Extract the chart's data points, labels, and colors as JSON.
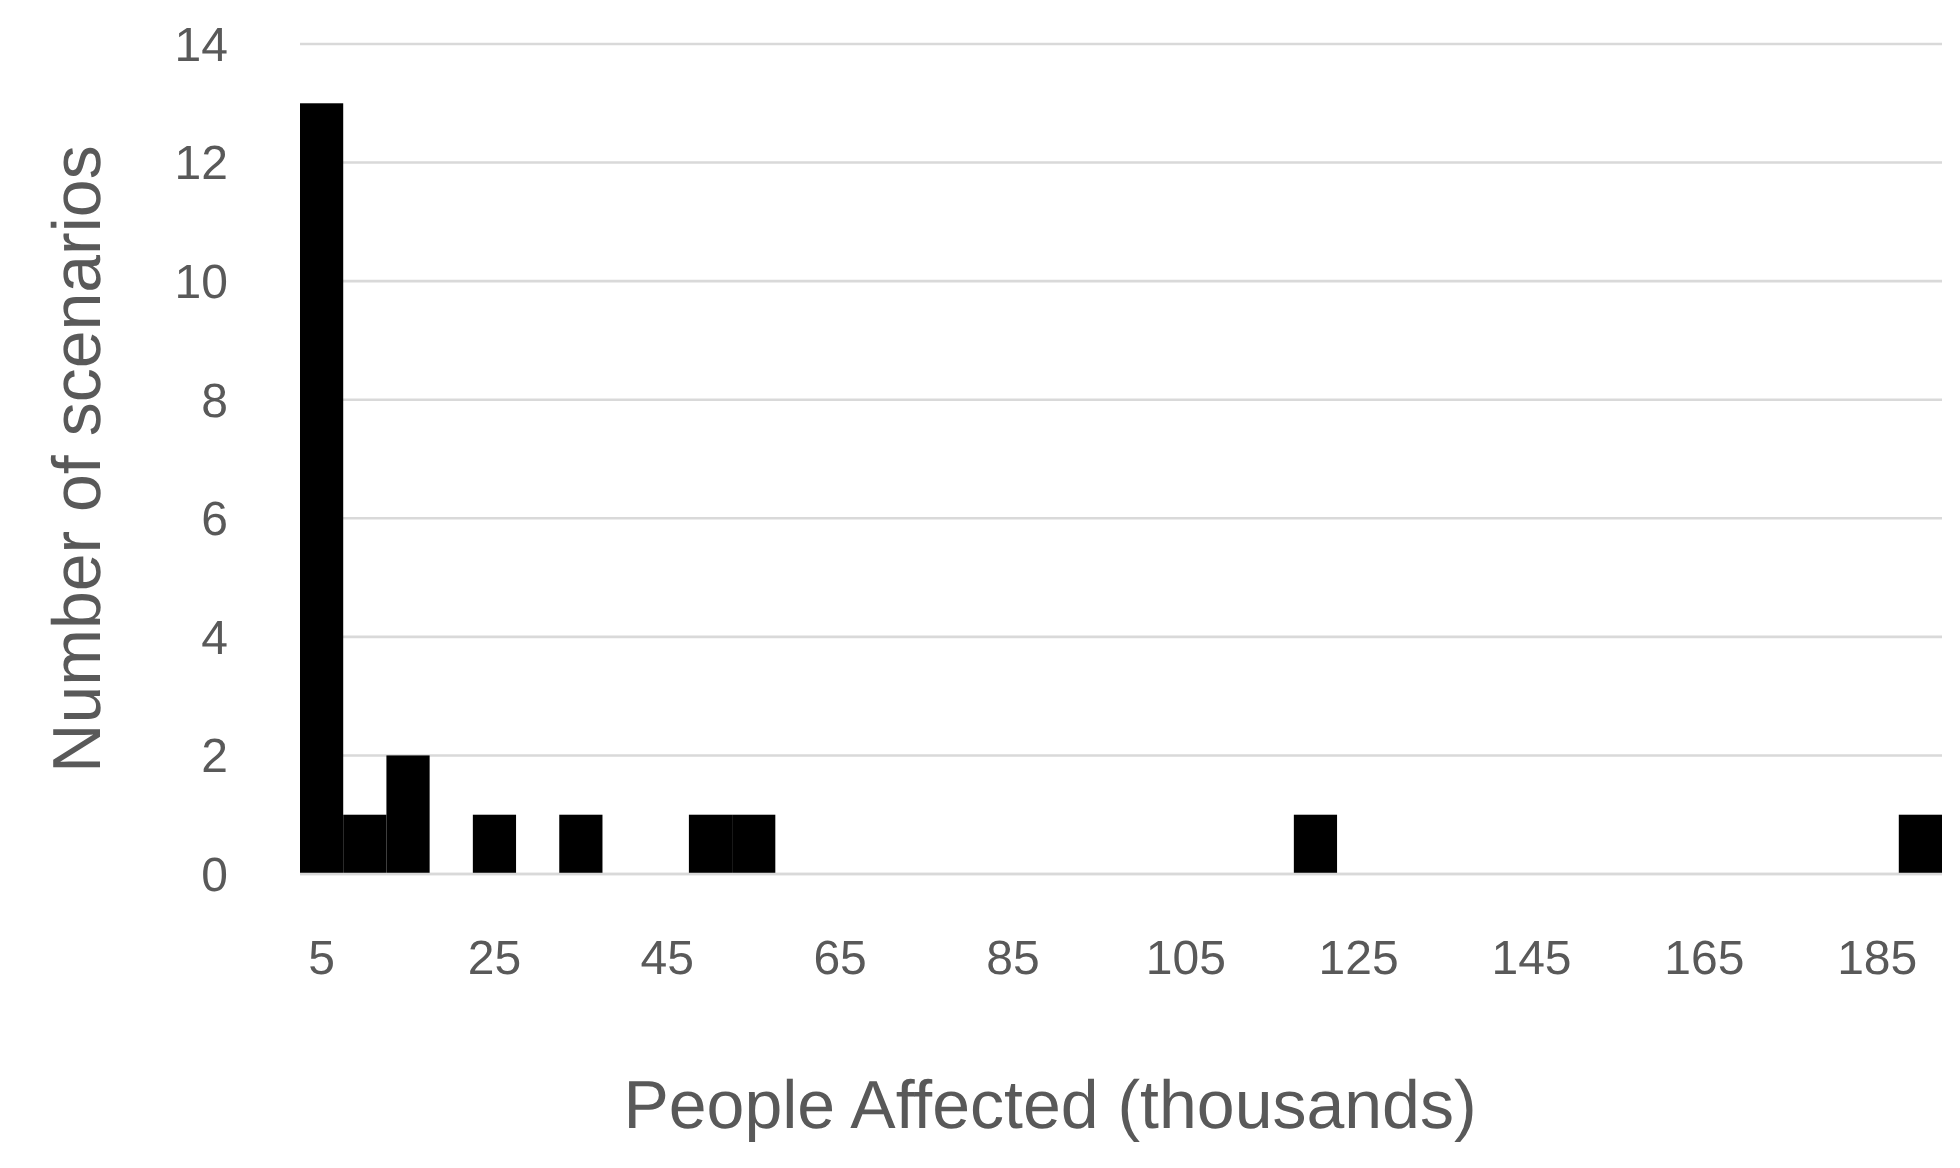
{
  "chart_data": {
    "type": "bar",
    "xlabel": "People Affected (thousands)",
    "ylabel": "Number of scenarios",
    "categories": [
      "5",
      null,
      null,
      null,
      "25",
      null,
      null,
      null,
      "45",
      null,
      null,
      null,
      "65",
      null,
      null,
      null,
      "85",
      null,
      null,
      null,
      "105",
      null,
      null,
      null,
      "125",
      null,
      null,
      null,
      "145",
      null,
      null,
      null,
      "165",
      null,
      null,
      null,
      "185",
      null
    ],
    "values": [
      13,
      1,
      2,
      0,
      1,
      0,
      1,
      0,
      0,
      1,
      1,
      0,
      0,
      0,
      0,
      0,
      0,
      0,
      0,
      0,
      0,
      0,
      0,
      1,
      0,
      0,
      0,
      0,
      0,
      0,
      0,
      0,
      0,
      0,
      0,
      0,
      0,
      1
    ],
    "color": "#000000",
    "ylim": [
      0,
      14
    ],
    "yticks": [
      0,
      2,
      4,
      6,
      8,
      10,
      12,
      14
    ],
    "grid": "y"
  }
}
